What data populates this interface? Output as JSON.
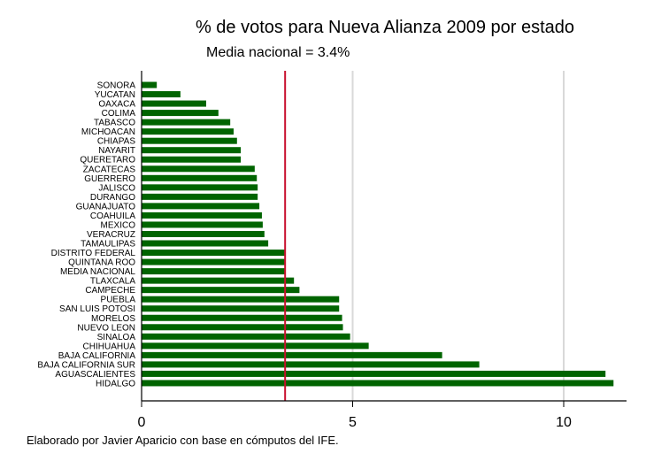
{
  "chart_data": {
    "type": "bar",
    "orientation": "horizontal",
    "title": "% de votos para Nueva Alianza 2009 por estado",
    "subtitle": "Media nacional = 3.4%",
    "footer": "Elaborado por Javier Aparicio con base en cómputos del IFE.",
    "xlabel": "",
    "ylabel": "",
    "xlim": [
      0,
      11.5
    ],
    "xticks": [
      0,
      5,
      10
    ],
    "grid": "vertical",
    "reference_line": {
      "value": 3.4,
      "color": "#c8102e"
    },
    "bar_color": "#006400",
    "categories": [
      "SONORA",
      "YUCATAN",
      "OAXACA",
      "COLIMA",
      "TABASCO",
      "MICHOACAN",
      "CHIAPAS",
      "NAYARIT",
      "QUERETARO",
      "ZACATECAS",
      "GUERRERO",
      "JALISCO",
      "DURANGO",
      "GUANAJUATO",
      "COAHUILA",
      "MEXICO",
      "VERACRUZ",
      "TAMAULIPAS",
      "DISTRITO FEDERAL",
      "QUINTANA ROO",
      "MEDIA NACIONAL",
      "TLAXCALA",
      "CAMPECHE",
      "PUEBLA",
      "SAN LUIS POTOSI",
      "MORELOS",
      "NUEVO LEON",
      "SINALOA",
      "CHIHUAHUA",
      "BAJA CALIFORNIA",
      "BAJA CALIFORNIA SUR",
      "AGUASCALIENTES",
      "HIDALGO"
    ],
    "values": [
      0.36,
      0.92,
      1.53,
      1.82,
      2.1,
      2.18,
      2.26,
      2.35,
      2.35,
      2.68,
      2.73,
      2.75,
      2.75,
      2.79,
      2.85,
      2.87,
      2.91,
      3.0,
      3.4,
      3.4,
      3.4,
      3.61,
      3.74,
      4.68,
      4.68,
      4.75,
      4.77,
      4.94,
      5.38,
      7.12,
      8.0,
      10.99,
      11.18
    ]
  }
}
